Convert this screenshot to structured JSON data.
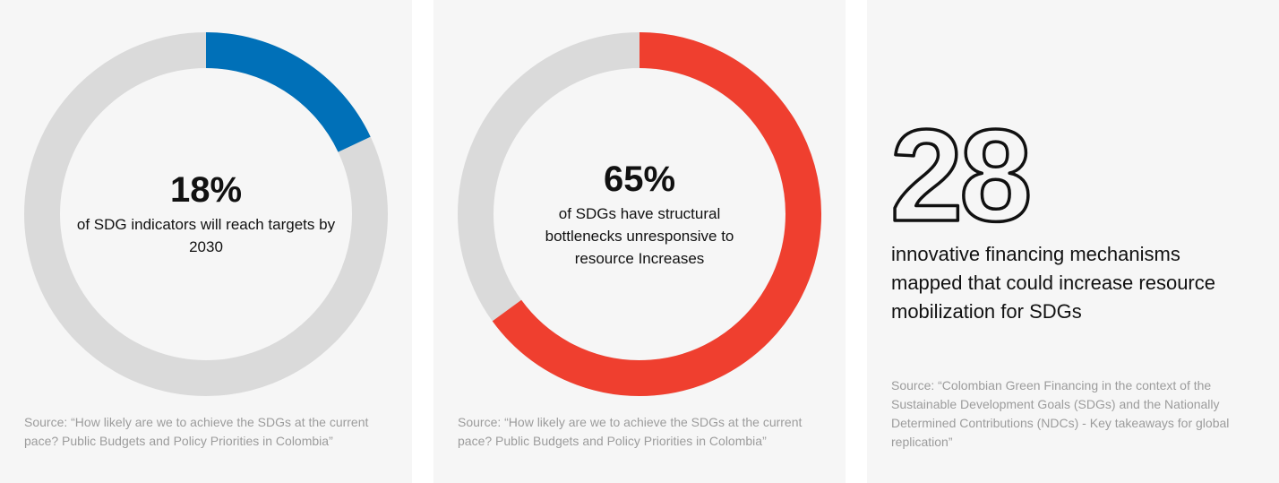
{
  "chart_data": [
    {
      "type": "pie",
      "variant": "donut",
      "values": [
        18,
        82
      ],
      "labels": [
        "18%",
        ""
      ],
      "value_label": "18%",
      "caption": "of SDG indicators will reach targets by 2030",
      "source": "Source: “How likely are we to achieve the SDGs at the current pace? Public Budgets and Policy Priorities in Colombia”",
      "colors": {
        "highlight": "#0070b8",
        "track": "#dadada"
      }
    },
    {
      "type": "pie",
      "variant": "donut",
      "values": [
        65,
        35
      ],
      "labels": [
        "65%",
        ""
      ],
      "value_label": "65%",
      "caption": "of SDGs have structural bottlenecks unresponsive to resource Increases",
      "source": "Source: “How likely are we to achieve the SDGs at the current pace? Public Budgets and Policy Priorities in Colombia”",
      "colors": {
        "highlight": "#ef3f2f",
        "track": "#dadada"
      }
    }
  ],
  "stat": {
    "value": "28",
    "caption": "innovative financing mechanisms mapped that could increase resource mobilization for SDGs",
    "source": "Source: “Colombian Green Financing in the context of the Sustainable Development Goals (SDGs) and the Nationally Determined Contributions (NDCs) - Key takeaways for global replication”"
  },
  "colors": {
    "card_bg": "#f6f6f6",
    "text": "#111111",
    "source_text": "#9c9c9c"
  }
}
